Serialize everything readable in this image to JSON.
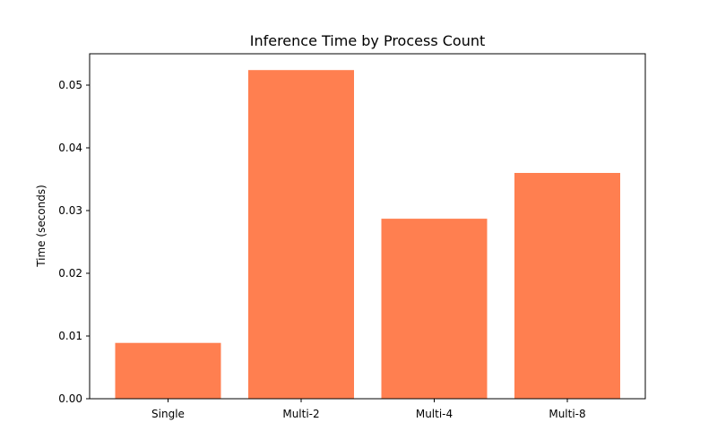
{
  "chart_data": {
    "type": "bar",
    "title": "Inference Time by Process Count",
    "xlabel": "",
    "ylabel": "Time (seconds)",
    "categories": [
      "Single",
      "Multi-2",
      "Multi-4",
      "Multi-8"
    ],
    "values": [
      0.0089,
      0.0524,
      0.0287,
      0.036
    ],
    "ylim": [
      0,
      0.055
    ],
    "yticks": [
      0.0,
      0.01,
      0.02,
      0.03,
      0.04,
      0.05
    ],
    "ytick_labels": [
      "0.00",
      "0.01",
      "0.02",
      "0.03",
      "0.04",
      "0.05"
    ],
    "bar_color": "#ff7f50",
    "grid": false,
    "legend": "none"
  }
}
